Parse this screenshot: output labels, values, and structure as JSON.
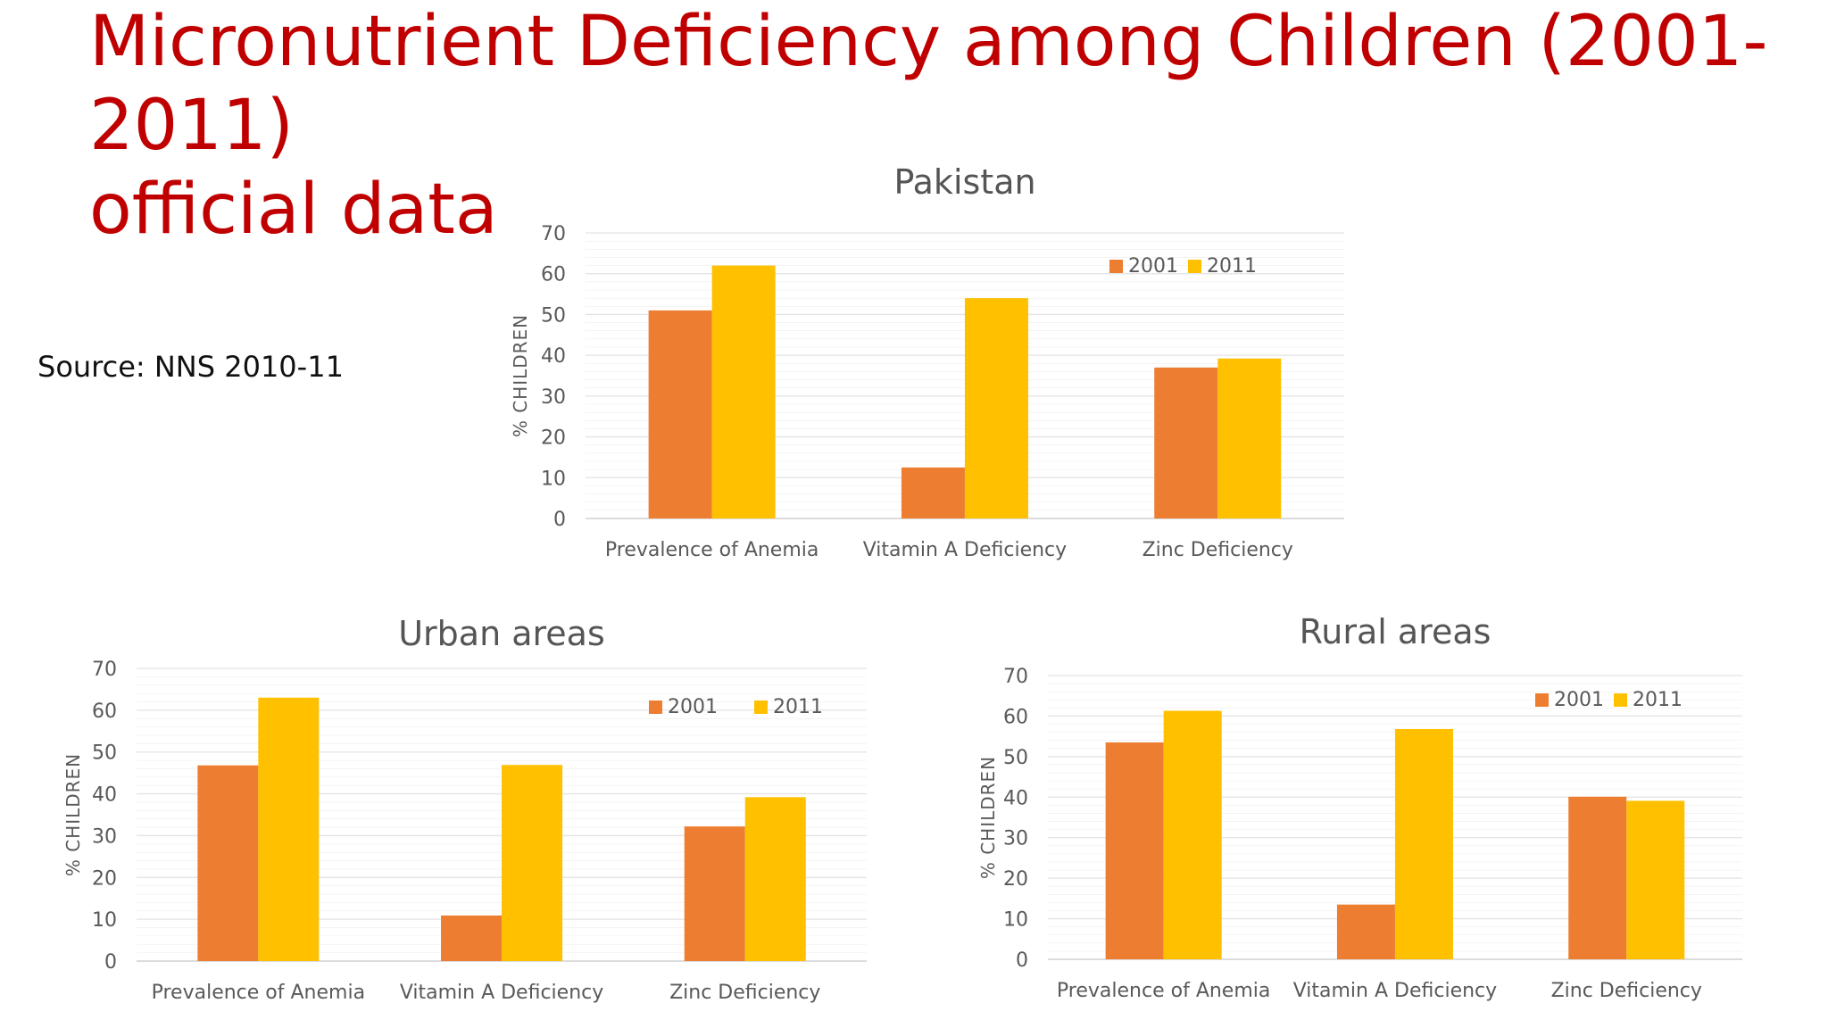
{
  "slide": {
    "title_line1": "Micronutrient Deficiency among Children (2001-2011)",
    "title_line2": "official data",
    "source": "Source: NNS 2010-11"
  },
  "colors": {
    "title": "#c00000",
    "series_2001": "#ed7d31",
    "series_2011": "#ffc000",
    "gridline": "#e3e3e3",
    "axis_text": "#595959"
  },
  "chart_data": [
    {
      "type": "bar",
      "title": "Pakistan",
      "categories": [
        "Prevalence of Anemia",
        "Vitamin A Deficiency",
        "Zinc Deficiency"
      ],
      "series": [
        {
          "name": "2001",
          "values": [
            51,
            12.5,
            37
          ]
        },
        {
          "name": "2011",
          "values": [
            62,
            54,
            39.2
          ]
        }
      ],
      "ylabel": "% CHILDREN",
      "xlabel": "",
      "ylim": [
        0,
        70
      ],
      "yticks": [
        0,
        10,
        20,
        30,
        40,
        50,
        60,
        70
      ],
      "grid": true,
      "legend": "top-right"
    },
    {
      "type": "bar",
      "title": "Urban areas",
      "categories": [
        "Prevalence of Anemia",
        "Vitamin A Deficiency",
        "Zinc Deficiency"
      ],
      "series": [
        {
          "name": "2001",
          "values": [
            46.8,
            10.9,
            32.2
          ]
        },
        {
          "name": "2011",
          "values": [
            63,
            46.9,
            39.2
          ]
        }
      ],
      "ylabel": "% CHILDREN",
      "xlabel": "",
      "ylim": [
        0,
        70
      ],
      "yticks": [
        0,
        10,
        20,
        30,
        40,
        50,
        60,
        70
      ],
      "grid": true,
      "legend": "top-right"
    },
    {
      "type": "bar",
      "title": "Rural areas",
      "categories": [
        "Prevalence of Anemia",
        "Vitamin A Deficiency",
        "Zinc Deficiency"
      ],
      "series": [
        {
          "name": "2001",
          "values": [
            53.5,
            13.5,
            40.1
          ]
        },
        {
          "name": "2011",
          "values": [
            61.3,
            56.8,
            39.1
          ]
        }
      ],
      "ylabel": "% CHILDREN",
      "xlabel": "",
      "ylim": [
        0,
        70
      ],
      "yticks": [
        0,
        10,
        20,
        30,
        40,
        50,
        60,
        70
      ],
      "grid": true,
      "legend": "top-right"
    }
  ]
}
